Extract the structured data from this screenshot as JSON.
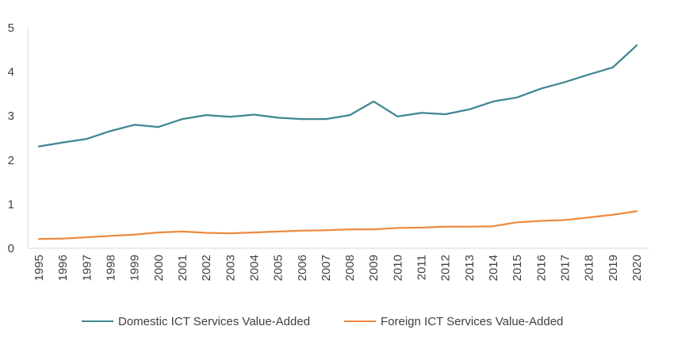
{
  "chart_data": {
    "type": "line",
    "title": "",
    "xlabel": "",
    "ylabel": "",
    "x": [
      "1995",
      "1996",
      "1997",
      "1998",
      "1999",
      "2000",
      "2001",
      "2002",
      "2003",
      "2004",
      "2005",
      "2006",
      "2007",
      "2008",
      "2009",
      "2010",
      "2011",
      "2012",
      "2013",
      "2014",
      "2015",
      "2016",
      "2017",
      "2018",
      "2019",
      "2020"
    ],
    "ylim": [
      0,
      5
    ],
    "yticks": [
      "0",
      "1",
      "2",
      "3",
      "4",
      "5"
    ],
    "grid": false,
    "legend_position": "bottom",
    "series": [
      {
        "name": "Domestic ICT Services Value-Added",
        "color": "#3f8790",
        "values": [
          2.31,
          2.4,
          2.48,
          2.66,
          2.8,
          2.75,
          2.93,
          3.02,
          2.98,
          3.03,
          2.96,
          2.93,
          2.93,
          3.02,
          3.33,
          2.99,
          3.07,
          3.04,
          3.15,
          3.33,
          3.42,
          3.62,
          3.77,
          3.94,
          4.1,
          4.6
        ]
      },
      {
        "name": "Foreign ICT Services Value-Added",
        "color": "#ed8a3f",
        "values": [
          0.21,
          0.22,
          0.25,
          0.28,
          0.31,
          0.36,
          0.38,
          0.35,
          0.34,
          0.36,
          0.38,
          0.4,
          0.41,
          0.43,
          0.43,
          0.46,
          0.47,
          0.49,
          0.49,
          0.5,
          0.59,
          0.62,
          0.64,
          0.7,
          0.76,
          0.84
        ]
      }
    ]
  }
}
